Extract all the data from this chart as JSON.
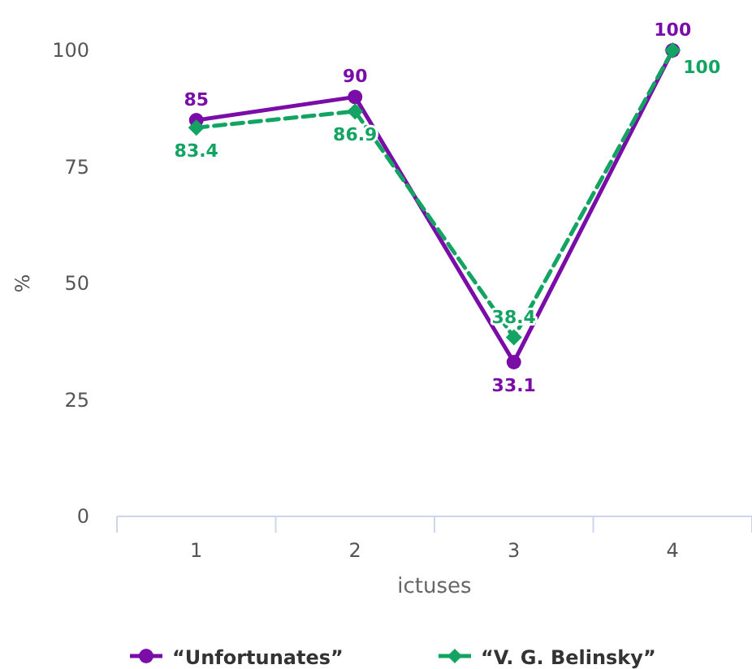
{
  "chart_data": {
    "type": "line",
    "xlabel": "ictuses",
    "ylabel": "%",
    "categories": [
      "1",
      "2",
      "3",
      "4"
    ],
    "ylim": [
      0,
      100
    ],
    "yticks": [
      0,
      25,
      50,
      75,
      100
    ],
    "legend": "bottom",
    "data_labels": true,
    "series": [
      {
        "name": "“Unfortunates”",
        "color": "#7a0ca8",
        "values": [
          85,
          90,
          33.1,
          100
        ],
        "marker": "circle",
        "line_style": "solid"
      },
      {
        "name": "“V. G. Belinsky”",
        "color": "#13a463",
        "values": [
          83.4,
          86.9,
          38.4,
          100
        ],
        "marker": "diamond",
        "line_style": "dashed"
      }
    ]
  }
}
